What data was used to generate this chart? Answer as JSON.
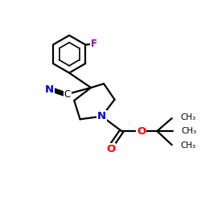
{
  "bg_color": "#ffffff",
  "atom_color_N": "#0000cc",
  "atom_color_O": "#ff0000",
  "atom_color_F": "#9900aa",
  "atom_color_C": "#000000",
  "bond_color": "#000000",
  "bond_width": 1.6,
  "figsize": [
    2.5,
    2.5
  ],
  "dpi": 100,
  "xlim": [
    0,
    10
  ],
  "ylim": [
    0,
    10
  ]
}
